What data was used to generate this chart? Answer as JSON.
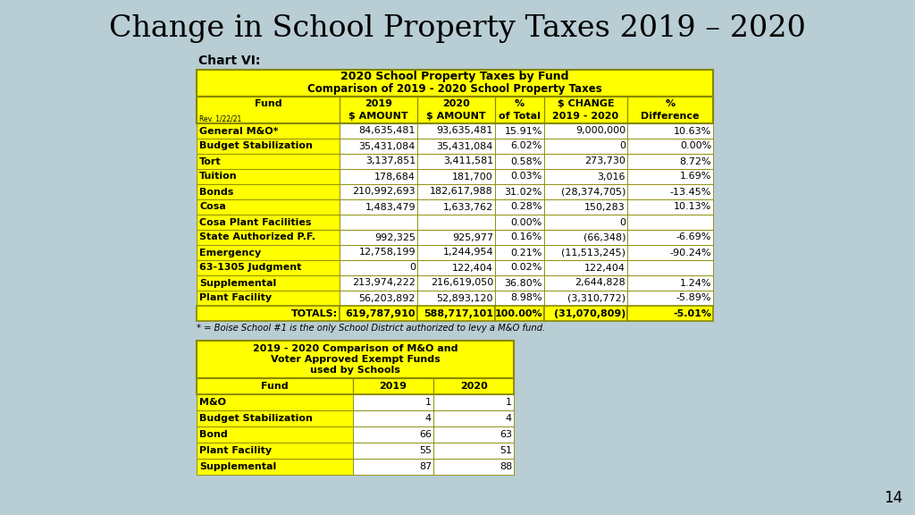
{
  "title": "Change in School Property Taxes 2019 – 2020",
  "subtitle": "Chart VI:",
  "background_color": "#b8cdd4",
  "page_number": "14",
  "table1_header1": "2020 School Property Taxes by Fund",
  "table1_header2": "Comparison of 2019 - 2020 School Property Taxes",
  "rev_label": "Rev. 1/22/21",
  "table1_rows": [
    [
      "General M&O*",
      "84,635,481",
      "93,635,481",
      "15.91%",
      "9,000,000",
      "10.63%"
    ],
    [
      "Budget Stabilization",
      "35,431,084",
      "35,431,084",
      "6.02%",
      "0",
      "0.00%"
    ],
    [
      "Tort",
      "3,137,851",
      "3,411,581",
      "0.58%",
      "273,730",
      "8.72%"
    ],
    [
      "Tuition",
      "178,684",
      "181,700",
      "0.03%",
      "3,016",
      "1.69%"
    ],
    [
      "Bonds",
      "210,992,693",
      "182,617,988",
      "31.02%",
      "(28,374,705)",
      "-13.45%"
    ],
    [
      "Cosa",
      "1,483,479",
      "1,633,762",
      "0.28%",
      "150,283",
      "10.13%"
    ],
    [
      "Cosa Plant Facilities",
      "",
      "",
      "0.00%",
      "0",
      ""
    ],
    [
      "State Authorized P.F.",
      "992,325",
      "925,977",
      "0.16%",
      "(66,348)",
      "-6.69%"
    ],
    [
      "Emergency",
      "12,758,199",
      "1,244,954",
      "0.21%",
      "(11,513,245)",
      "-90.24%"
    ],
    [
      "63-1305 Judgment",
      "0",
      "122,404",
      "0.02%",
      "122,404",
      ""
    ],
    [
      "Supplemental",
      "213,974,222",
      "216,619,050",
      "36.80%",
      "2,644,828",
      "1.24%"
    ],
    [
      "Plant Facility",
      "56,203,892",
      "52,893,120",
      "8.98%",
      "(3,310,772)",
      "-5.89%"
    ]
  ],
  "table1_totals": [
    "TOTALS:",
    "619,787,910",
    "588,717,101",
    "100.00%",
    "(31,070,809)",
    "-5.01%"
  ],
  "footnote": "* = Boise School #1 is the only School District authorized to levy a M&O fund.",
  "table2_header1": "2019 - 2020 Comparison of M&O and",
  "table2_header2": "Voter Approved Exempt Funds",
  "table2_header3": "used by Schools",
  "table2_rows": [
    [
      "M&O",
      "1",
      "1"
    ],
    [
      "Budget Stabilization",
      "4",
      "4"
    ],
    [
      "Bond",
      "66",
      "63"
    ],
    [
      "Plant Facility",
      "55",
      "51"
    ],
    [
      "Supplemental",
      "87",
      "88"
    ]
  ],
  "yellow": "#FFFF00",
  "white": "#FFFFFF",
  "black": "#000000",
  "border_color": "#888800",
  "title_color": "#1a1a1a"
}
